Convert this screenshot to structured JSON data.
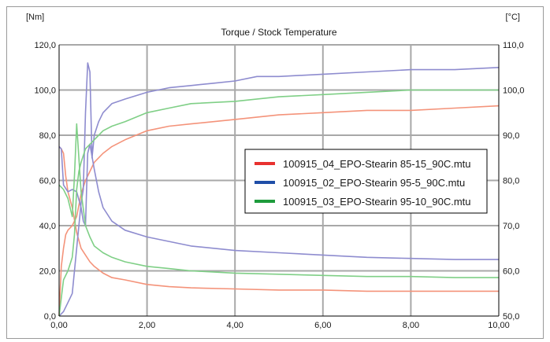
{
  "chart_data": {
    "type": "line",
    "title": "Torque / Stock Temperature",
    "y_left_unit": "[Nm]",
    "y_right_unit": "[°C]",
    "xlim": [
      0,
      10
    ],
    "ylim_left": [
      0,
      120
    ],
    "ylim_right": [
      50,
      110
    ],
    "x_ticks": [
      "0,00",
      "2,00",
      "4,00",
      "6,00",
      "8,00",
      "10,00"
    ],
    "y_left_ticks": [
      "0,0",
      "20,0",
      "40,0",
      "60,0",
      "80,0",
      "100,0",
      "120,0"
    ],
    "y_right_ticks": [
      "50,0",
      "60,0",
      "70,0",
      "80,0",
      "90,0",
      "100,0",
      "110,0"
    ],
    "grid": true,
    "legend_position": "center-right",
    "series": [
      {
        "name": "100915_04_EPO-Stearin 85-15_90C.mtu",
        "color": "#e8312f",
        "line_color": "#f4937a",
        "torque": [
          [
            0,
            75
          ],
          [
            0.05,
            74
          ],
          [
            0.1,
            72
          ],
          [
            0.15,
            62
          ],
          [
            0.2,
            55
          ],
          [
            0.3,
            48
          ],
          [
            0.4,
            37
          ],
          [
            0.5,
            30
          ],
          [
            0.6,
            27
          ],
          [
            0.7,
            24
          ],
          [
            0.8,
            22
          ],
          [
            1.0,
            19
          ],
          [
            1.2,
            17
          ],
          [
            1.5,
            16
          ],
          [
            2.0,
            14
          ],
          [
            2.5,
            13
          ],
          [
            3.0,
            12.5
          ],
          [
            4.0,
            12
          ],
          [
            5.0,
            11.5
          ],
          [
            6.0,
            11.5
          ],
          [
            7.0,
            11
          ],
          [
            8.0,
            11
          ],
          [
            9.0,
            11
          ],
          [
            10.0,
            11
          ]
        ],
        "temperature": [
          [
            0,
            50
          ],
          [
            0.05,
            61
          ],
          [
            0.1,
            65
          ],
          [
            0.15,
            68
          ],
          [
            0.2,
            69
          ],
          [
            0.3,
            70
          ],
          [
            0.4,
            72
          ],
          [
            0.5,
            77
          ],
          [
            0.6,
            80
          ],
          [
            0.7,
            82
          ],
          [
            0.8,
            84
          ],
          [
            1.0,
            86
          ],
          [
            1.2,
            87.5
          ],
          [
            1.5,
            89
          ],
          [
            2.0,
            91
          ],
          [
            2.5,
            92
          ],
          [
            3.0,
            92.5
          ],
          [
            4.0,
            93.5
          ],
          [
            5.0,
            94.5
          ],
          [
            6.0,
            95
          ],
          [
            7.0,
            95.5
          ],
          [
            8.0,
            95.5
          ],
          [
            9.0,
            96
          ],
          [
            10.0,
            96.5
          ]
        ]
      },
      {
        "name": "100915_02_EPO-Stearin 95-5_90C.mtu",
        "color": "#1f4ea8",
        "line_color": "#8e8ccf",
        "torque": [
          [
            0,
            75
          ],
          [
            0.05,
            74
          ],
          [
            0.1,
            58
          ],
          [
            0.2,
            55
          ],
          [
            0.3,
            56
          ],
          [
            0.4,
            55
          ],
          [
            0.5,
            48
          ],
          [
            0.55,
            42
          ],
          [
            0.6,
            40
          ],
          [
            0.65,
            72
          ],
          [
            0.7,
            76
          ],
          [
            0.8,
            65
          ],
          [
            0.9,
            55
          ],
          [
            1.0,
            48
          ],
          [
            1.2,
            42
          ],
          [
            1.5,
            38
          ],
          [
            2.0,
            35
          ],
          [
            3.0,
            31
          ],
          [
            4.0,
            29
          ],
          [
            5.0,
            28
          ],
          [
            6.0,
            27
          ],
          [
            7.0,
            26
          ],
          [
            8.0,
            25.5
          ],
          [
            9.0,
            25
          ],
          [
            10.0,
            25
          ]
        ],
        "temperature": [
          [
            0,
            50
          ],
          [
            0.1,
            51
          ],
          [
            0.2,
            53
          ],
          [
            0.3,
            55
          ],
          [
            0.4,
            65
          ],
          [
            0.5,
            75
          ],
          [
            0.55,
            78
          ],
          [
            0.6,
            95
          ],
          [
            0.65,
            106
          ],
          [
            0.7,
            104
          ],
          [
            0.75,
            85
          ],
          [
            0.8,
            90
          ],
          [
            0.9,
            93
          ],
          [
            1.0,
            95
          ],
          [
            1.2,
            97
          ],
          [
            1.5,
            98
          ],
          [
            2.0,
            99.5
          ],
          [
            2.5,
            100.5
          ],
          [
            3.0,
            101
          ],
          [
            3.5,
            101.5
          ],
          [
            4.0,
            102
          ],
          [
            4.5,
            103
          ],
          [
            5.0,
            103
          ],
          [
            6.0,
            103.5
          ],
          [
            7.0,
            104
          ],
          [
            8.0,
            104.5
          ],
          [
            9.0,
            104.5
          ],
          [
            10.0,
            105
          ]
        ]
      },
      {
        "name": "100915_03_EPO-Stearin 95-10_90C.mtu",
        "color": "#1e9b3c",
        "line_color": "#7fcf86",
        "torque": [
          [
            0,
            58
          ],
          [
            0.05,
            57
          ],
          [
            0.1,
            56
          ],
          [
            0.2,
            52
          ],
          [
            0.3,
            44
          ],
          [
            0.35,
            62
          ],
          [
            0.4,
            85
          ],
          [
            0.45,
            70
          ],
          [
            0.5,
            55
          ],
          [
            0.6,
            40
          ],
          [
            0.7,
            35
          ],
          [
            0.8,
            31
          ],
          [
            1.0,
            28
          ],
          [
            1.2,
            26
          ],
          [
            1.5,
            24
          ],
          [
            2.0,
            22
          ],
          [
            2.5,
            21
          ],
          [
            3.0,
            20
          ],
          [
            4.0,
            19
          ],
          [
            5.0,
            18.5
          ],
          [
            6.0,
            18
          ],
          [
            7.0,
            17.5
          ],
          [
            8.0,
            17.5
          ],
          [
            9.0,
            17
          ],
          [
            10.0,
            17
          ]
        ],
        "temperature": [
          [
            0,
            50
          ],
          [
            0.1,
            58
          ],
          [
            0.2,
            60
          ],
          [
            0.3,
            63
          ],
          [
            0.35,
            68
          ],
          [
            0.4,
            78
          ],
          [
            0.45,
            82
          ],
          [
            0.5,
            84
          ],
          [
            0.6,
            87
          ],
          [
            0.7,
            88
          ],
          [
            0.8,
            89
          ],
          [
            1.0,
            91
          ],
          [
            1.2,
            92
          ],
          [
            1.5,
            93
          ],
          [
            2.0,
            95
          ],
          [
            2.5,
            96
          ],
          [
            3.0,
            97
          ],
          [
            4.0,
            97.5
          ],
          [
            5.0,
            98.5
          ],
          [
            6.0,
            99
          ],
          [
            7.0,
            99.5
          ],
          [
            8.0,
            100
          ],
          [
            9.0,
            100
          ],
          [
            10.0,
            100
          ]
        ]
      }
    ]
  }
}
